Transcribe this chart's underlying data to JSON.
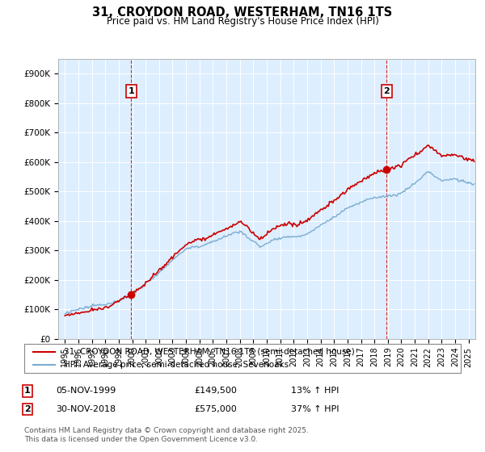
{
  "title": "31, CROYDON ROAD, WESTERHAM, TN16 1TS",
  "subtitle": "Price paid vs. HM Land Registry's House Price Index (HPI)",
  "legend_line1": "31, CROYDON ROAD, WESTERHAM, TN16 1TS (semi-detached house)",
  "legend_line2": "HPI: Average price, semi-detached house, Sevenoaks",
  "footer": "Contains HM Land Registry data © Crown copyright and database right 2025.\nThis data is licensed under the Open Government Licence v3.0.",
  "annotation1_date": "05-NOV-1999",
  "annotation1_price": "£149,500",
  "annotation1_hpi": "13% ↑ HPI",
  "annotation2_date": "30-NOV-2018",
  "annotation2_price": "£575,000",
  "annotation2_hpi": "37% ↑ HPI",
  "price_color": "#cc0000",
  "hpi_color": "#7aadcf",
  "plot_bg_color": "#ddeeff",
  "background_color": "#ffffff",
  "grid_color": "#ffffff",
  "ylim": [
    0,
    950000
  ],
  "yticks": [
    0,
    100000,
    200000,
    300000,
    400000,
    500000,
    600000,
    700000,
    800000,
    900000
  ],
  "ytick_labels": [
    "£0",
    "£100K",
    "£200K",
    "£300K",
    "£400K",
    "£500K",
    "£600K",
    "£700K",
    "£800K",
    "£900K"
  ],
  "xlim_start": 1994.5,
  "xlim_end": 2025.5,
  "sale1_x": 1999.92,
  "sale1_y": 149500,
  "sale2_x": 2018.92,
  "sale2_y": 575000
}
